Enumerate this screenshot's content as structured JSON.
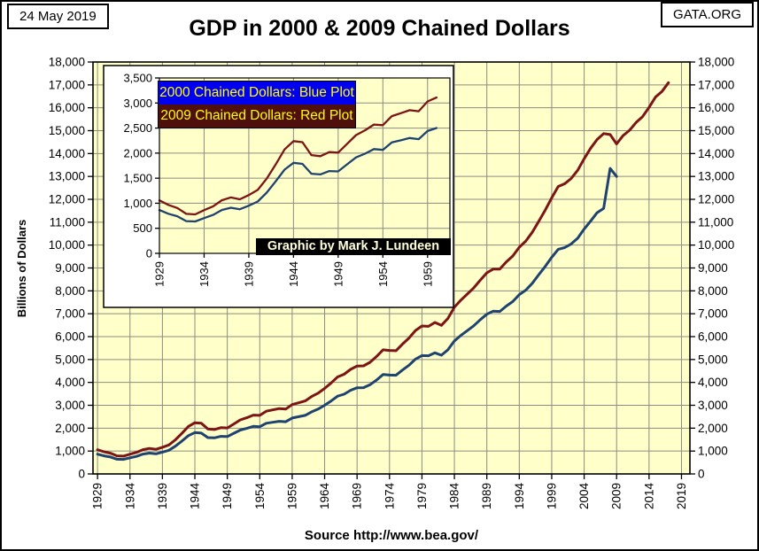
{
  "header": {
    "date_label": "24 May 2019",
    "title": "GDP in 2000 & 2009 Chained Dollars",
    "brand": "GATA.ORG"
  },
  "footer": {
    "source": "Source http://www.bea.gov/"
  },
  "credit": "Graphic by Mark J. Lundeen",
  "legend": {
    "blue_label": "2000 Chained Dollars: Blue Plot",
    "red_label": "2009 Chained Dollars: Red Plot"
  },
  "colors": {
    "plot_bg": "#FFFFC9",
    "grid": "#8C8C82",
    "axis": "#000000",
    "blue": "#1E4370",
    "red": "#7D1416",
    "legend_blue_bg": "#0000EE",
    "legend_red_bg": "#4E0F0D",
    "legend_text": "#FFFF00",
    "credit_bg": "#000000",
    "credit_text": "#FFFFDE"
  },
  "chart_data": [
    {
      "id": "main",
      "type": "line",
      "title": "GDP in 2000 & 2009 Chained Dollars",
      "ylabel": "Billions of Dollars",
      "ylim": [
        0,
        18000
      ],
      "ytick_step": 1000,
      "xticks": [
        1929,
        1934,
        1939,
        1944,
        1949,
        1954,
        1959,
        1964,
        1969,
        1974,
        1979,
        1984,
        1989,
        1994,
        1999,
        2004,
        2009,
        2014,
        2019
      ],
      "x_domain": [
        1928.3,
        2020.3
      ],
      "grid": true,
      "legend_position": "inset-top-left",
      "series": [
        {
          "name": "2000 Chained Dollars: Blue Plot",
          "color_key": "blue",
          "start_year": 1929,
          "end_year": 2009,
          "values": [
            865,
            791,
            740,
            644,
            636,
            704,
            767,
            867,
            911,
            880,
            951,
            1034,
            1211,
            1435,
            1671,
            1806,
            1786,
            1589,
            1575,
            1643,
            1635,
            1777,
            1915,
            1988,
            2080,
            2065,
            2213,
            2256,
            2301,
            2279,
            2441,
            2502,
            2560,
            2715,
            2834,
            2999,
            3191,
            3399,
            3485,
            3653,
            3765,
            3772,
            3899,
            4105,
            4342,
            4320,
            4311,
            4541,
            4751,
            5015,
            5173,
            5162,
            5292,
            5189,
            5424,
            5814,
            6054,
            6264,
            6475,
            6743,
            6981,
            7113,
            7101,
            7337,
            7533,
            7836,
            8032,
            8329,
            8704,
            9067,
            9470,
            9817,
            9891,
            10049,
            10301,
            10704,
            11049,
            11415,
            11600,
            13350,
            13000
          ]
        },
        {
          "name": "2009 Chained Dollars: Red Plot",
          "color_key": "red",
          "start_year": 1929,
          "end_year": 2017,
          "values": [
            1057,
            967,
            905,
            788,
            778,
            862,
            939,
            1061,
            1115,
            1078,
            1164,
            1266,
            1490,
            1772,
            2074,
            2239,
            2218,
            1961,
            1939,
            2020,
            2009,
            2184,
            2360,
            2456,
            2571,
            2557,
            2739,
            2797,
            2856,
            2835,
            3031,
            3109,
            3188,
            3383,
            3530,
            3734,
            3977,
            4239,
            4355,
            4569,
            4713,
            4722,
            4878,
            5134,
            5424,
            5396,
            5385,
            5675,
            5937,
            6267,
            6466,
            6450,
            6618,
            6491,
            6792,
            7285,
            7594,
            7861,
            8133,
            8475,
            8786,
            8955,
            8948,
            9267,
            9521,
            9905,
            10175,
            10561,
            11035,
            11526,
            12066,
            12560,
            12682,
            12909,
            13271,
            13774,
            14234,
            14614,
            14874,
            14830,
            14419,
            14784,
            15021,
            15355,
            15612,
            16013,
            16472,
            16716,
            17100
          ]
        }
      ]
    },
    {
      "id": "inset",
      "type": "line",
      "ylim": [
        0,
        3500
      ],
      "ytick_step": 500,
      "xticks": [
        1929,
        1934,
        1939,
        1944,
        1949,
        1954,
        1959
      ],
      "x_domain": [
        1929,
        1961.5
      ],
      "grid": true,
      "series_from": "main",
      "series_end_year": 1960,
      "note": "Inset shows the same two series for 1929-1960"
    }
  ]
}
